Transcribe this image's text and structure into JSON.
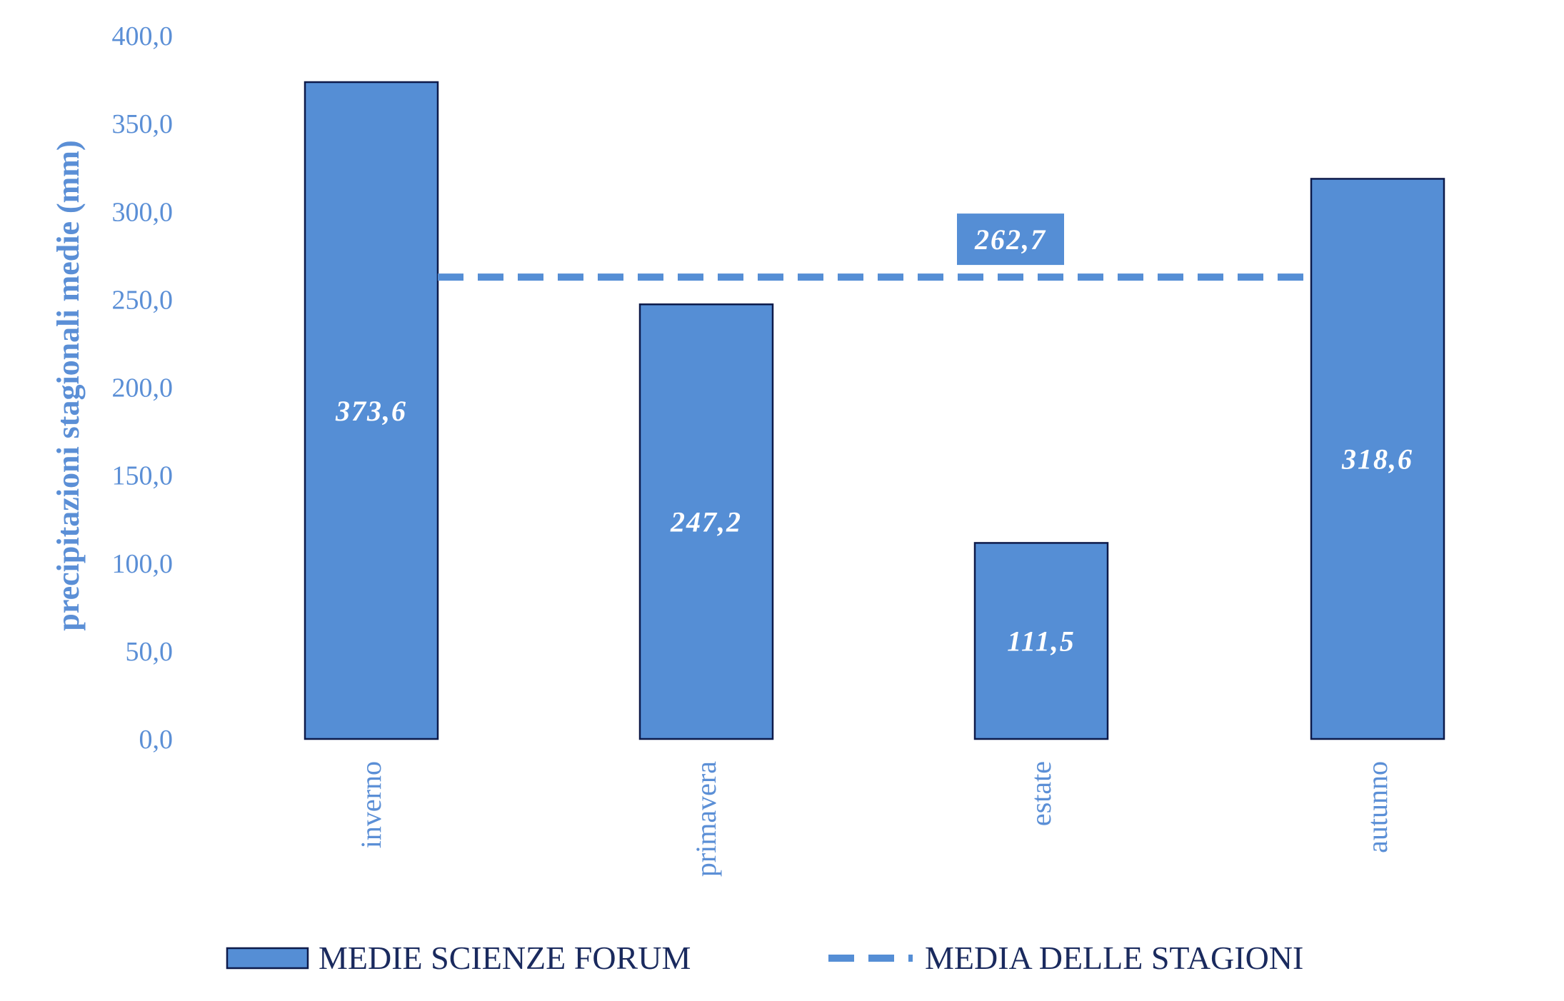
{
  "chart_data": {
    "type": "bar",
    "ylabel": "precipitazioni stagionali medie (mm)",
    "ylim": [
      0,
      400
    ],
    "yticks": [
      "0,0",
      "50,0",
      "100,0",
      "150,0",
      "200,0",
      "250,0",
      "300,0",
      "350,0",
      "400,0"
    ],
    "ytick_values": [
      0,
      50,
      100,
      150,
      200,
      250,
      300,
      350,
      400
    ],
    "categories": [
      "inverno",
      "primavera",
      "estate",
      "autunno"
    ],
    "series": [
      {
        "name": "MEDIE SCIENZE FORUM",
        "type": "bar",
        "values": [
          373.6,
          247.2,
          111.5,
          318.6
        ],
        "value_labels": [
          "373,6",
          "247,2",
          "111,5",
          "318,6"
        ],
        "color": "#558ed5",
        "edge_color": "#0d1a4a"
      },
      {
        "name": "MEDIA DELLE STAGIONI",
        "type": "line",
        "style": "dashed",
        "value": 262.7,
        "value_label": "262,7",
        "color": "#558ed5"
      }
    ],
    "grid": false,
    "legend_position": "bottom",
    "axis_text_color": "#5b8fd6",
    "legend_text_color": "#1a2a5e"
  }
}
